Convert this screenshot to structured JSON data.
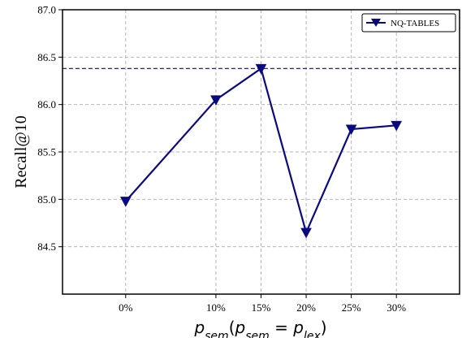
{
  "chart_data": {
    "type": "line",
    "x": [
      "0%",
      "10%",
      "15%",
      "20%",
      "25%",
      "30%"
    ],
    "x_values": [
      0,
      10,
      15,
      20,
      25,
      30
    ],
    "series": [
      {
        "name": "NQ-TABLES",
        "values": [
          84.98,
          86.05,
          86.38,
          84.65,
          85.74,
          85.78
        ],
        "color": "#0a0a80",
        "marker": "triangle-down"
      }
    ],
    "reference_line": {
      "y": 86.38,
      "style": "dashed",
      "color": "#0a0a80"
    },
    "ylim": [
      84.0,
      87.0
    ],
    "yticks": [
      84.5,
      85.0,
      85.5,
      86.0,
      86.5,
      87.0
    ],
    "ytick_labels": [
      "84.5",
      "85.0",
      "85.5",
      "86.0",
      "86.5",
      "87.0"
    ],
    "ylabel": "Recall@10",
    "xlabel": "p_sem(p_sem = p_lex)",
    "xlabel_parts": {
      "p1": "p",
      "sub1": "sem",
      "open": "(",
      "p2": "p",
      "sub2": "sem",
      "eq": " = ",
      "p3": "p",
      "sub3": "lex",
      "close": ")"
    },
    "grid": true,
    "legend_position": "top-right"
  }
}
